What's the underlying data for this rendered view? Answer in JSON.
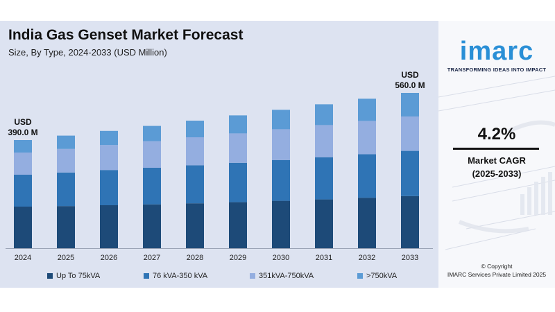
{
  "colors": {
    "panel_bg": "#dde3f1",
    "series": [
      "#1d4a78",
      "#2f74b5",
      "#94aee0",
      "#5b9bd5"
    ],
    "brand": "#2a8fd6"
  },
  "header": {
    "title": "India Gas Genset Market Forecast",
    "subtitle": "Size, By Type, 2024-2033 (USD Million)"
  },
  "chart_data": {
    "type": "bar",
    "stacked": true,
    "title": "India Gas Genset Market Forecast",
    "subtitle": "Size, By Type, 2024-2033 (USD Million)",
    "xlabel": "",
    "ylabel": "",
    "categories": [
      "2024",
      "2025",
      "2026",
      "2027",
      "2028",
      "2029",
      "2030",
      "2031",
      "2032",
      "2033"
    ],
    "totals": [
      390,
      406,
      423,
      441,
      460,
      479,
      499,
      519,
      539,
      560
    ],
    "series": [
      {
        "name": "Up To 75kVA",
        "values": [
          150,
          152,
          155,
          158,
          162,
          166,
          171,
          176,
          182,
          188
        ]
      },
      {
        "name": "76 kVA-350 kVA",
        "values": [
          115,
          121,
          127,
          132,
          137,
          142,
          147,
          152,
          157,
          163
        ]
      },
      {
        "name": "351kVA-750kVA",
        "values": [
          80,
          85,
          90,
          96,
          101,
          106,
          111,
          116,
          120,
          124
        ]
      },
      {
        "name": ">750kVA",
        "values": [
          45,
          48,
          51,
          55,
          60,
          65,
          70,
          75,
          80,
          85
        ]
      }
    ],
    "annotations": [
      {
        "category": "2024",
        "line1": "USD",
        "line2": "390.0 M"
      },
      {
        "category": "2033",
        "line1": "USD",
        "line2": "560.0 M"
      }
    ],
    "grid": false,
    "legend_position": "bottom"
  },
  "brand": {
    "logo": "imarc",
    "tagline": "TRANSFORMING IDEAS INTO IMPACT"
  },
  "cagr": {
    "value": "4.2%",
    "label": "Market CAGR",
    "period": "(2025-2033)"
  },
  "footer": {
    "copyright": "© Copyright",
    "company": "IMARC Services Private Limited 2025"
  }
}
